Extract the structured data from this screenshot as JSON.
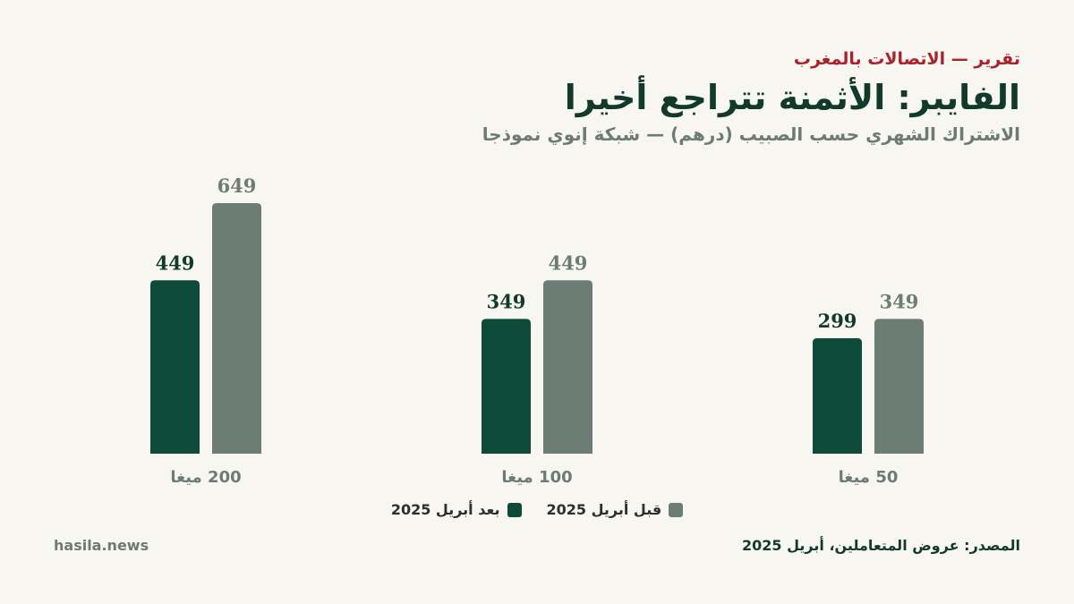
{
  "header": {
    "kicker": "تقرير — الاتصالات بالمغرب",
    "title": "الفايبر: الأثمنة تتراجع أخيرا",
    "subtitle": "الاشتراك الشهري حسب الصبيب (درهم) — شبكة إنوي نموذجا"
  },
  "legend": {
    "before_label": "قبل أبريل 2025",
    "after_label": "بعد أبريل 2025"
  },
  "footer": {
    "source": "المصدر: عروض المتعاملين، أبريل 2025",
    "brand": "hasila.news"
  },
  "colors": {
    "before": "#6b7d74",
    "after": "#0d4a3a",
    "before_label": "#6b7d74",
    "after_label": "#123a2c"
  },
  "chart_data": {
    "type": "bar",
    "categories": [
      "200 ميغا",
      "100 ميغا",
      "50 ميغا"
    ],
    "series": [
      {
        "name": "بعد أبريل 2025",
        "values": [
          449,
          349,
          299
        ]
      },
      {
        "name": "قبل أبريل 2025",
        "values": [
          649,
          449,
          349
        ]
      }
    ],
    "ylim": [
      0,
      649
    ],
    "grid": false,
    "legend_position": "bottom-center"
  }
}
